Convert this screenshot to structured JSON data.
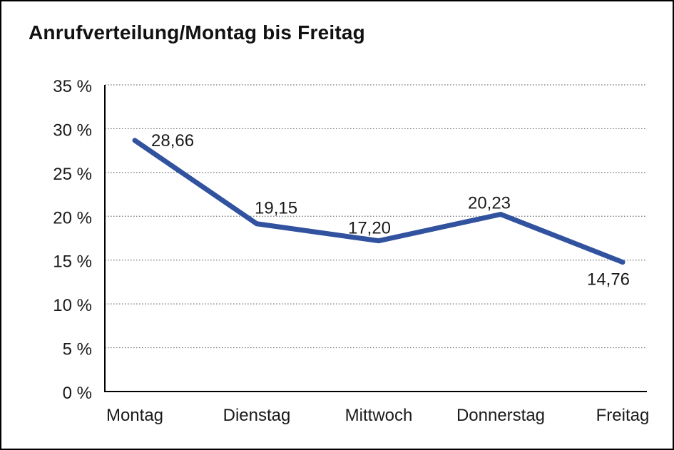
{
  "chart_data": {
    "type": "line",
    "title": "Anrufverteilung/Montag bis Freitag",
    "categories": [
      "Montag",
      "Dienstag",
      "Mittwoch",
      "Donnerstag",
      "Freitag"
    ],
    "values": [
      28.66,
      19.15,
      17.2,
      20.23,
      14.76
    ],
    "value_labels": [
      "28,66",
      "19,15",
      "17,20",
      "20,23",
      "14,76"
    ],
    "y_tick_labels": [
      "0 %",
      "5 %",
      "10 %",
      "15 %",
      "20 %",
      "25 %",
      "30 %",
      "35 %"
    ],
    "ylim": [
      0,
      35
    ],
    "y_step": 5,
    "xlabel": "",
    "ylabel": "",
    "legend": "none",
    "grid": "horizontal-dotted",
    "line_color": "#31529F",
    "axis_color": "#000000",
    "gridline_color": "#777777",
    "text_color": "#1a1a1a"
  }
}
